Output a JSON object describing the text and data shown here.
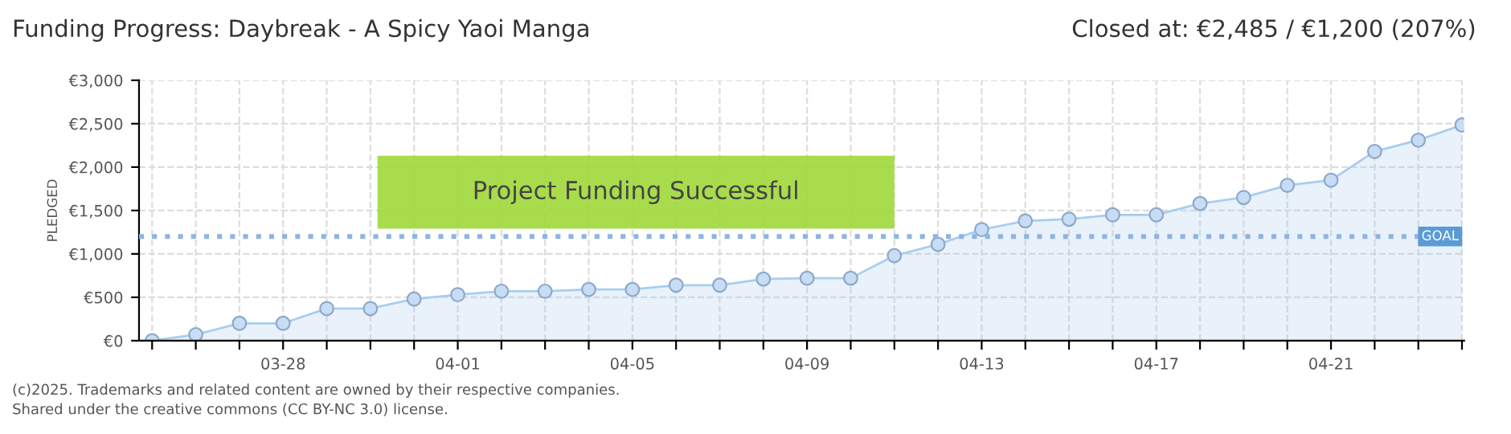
{
  "chart_data": {
    "type": "area",
    "title": "Funding Progress: Daybreak - A Spicy Yaoi Manga",
    "subtitle": "Closed at: €2,485 / €1,200 (207%)",
    "ylabel": "PLEDGED",
    "categories": [
      null,
      null,
      null,
      "03-28",
      null,
      null,
      null,
      "04-01",
      null,
      null,
      null,
      "04-05",
      null,
      null,
      null,
      "04-09",
      null,
      null,
      null,
      "04-13",
      null,
      null,
      null,
      "04-17",
      null,
      null,
      null,
      "04-21",
      null,
      null,
      null
    ],
    "series": [
      {
        "color": "#a8cdf0",
        "values": [
          0,
          70,
          200,
          200,
          370,
          370,
          480,
          530,
          570,
          570,
          590,
          590,
          640,
          640,
          710,
          720,
          720,
          980,
          1110,
          1280,
          1380,
          1400,
          1450,
          1450,
          1580,
          1650,
          1790,
          1850,
          2180,
          2310,
          2485
        ]
      }
    ],
    "ylim": [
      0,
      3000
    ],
    "yticks": [
      {
        "value": 0,
        "label": "€0"
      },
      {
        "value": 500,
        "label": "€500"
      },
      {
        "value": 1000,
        "label": "€1,000"
      },
      {
        "value": 1500,
        "label": "€1,500"
      },
      {
        "value": 2000,
        "label": "€2,000"
      },
      {
        "value": 2500,
        "label": "€2,500"
      },
      {
        "value": 3000,
        "label": "€3,000"
      }
    ],
    "ref_lines": [
      {
        "axis": "y",
        "value": 1200,
        "label": "GOAL",
        "color": "#8fb4e0",
        "line_style": "dotted"
      }
    ],
    "annotations": [
      "Project Funding Successful",
      "(c)2025. Trademarks and related content are owned by their respective companies.",
      "Shared under the creative commons (CC BY-NC 3.0) license."
    ],
    "grid": true,
    "marker": "circle",
    "legend": false
  }
}
